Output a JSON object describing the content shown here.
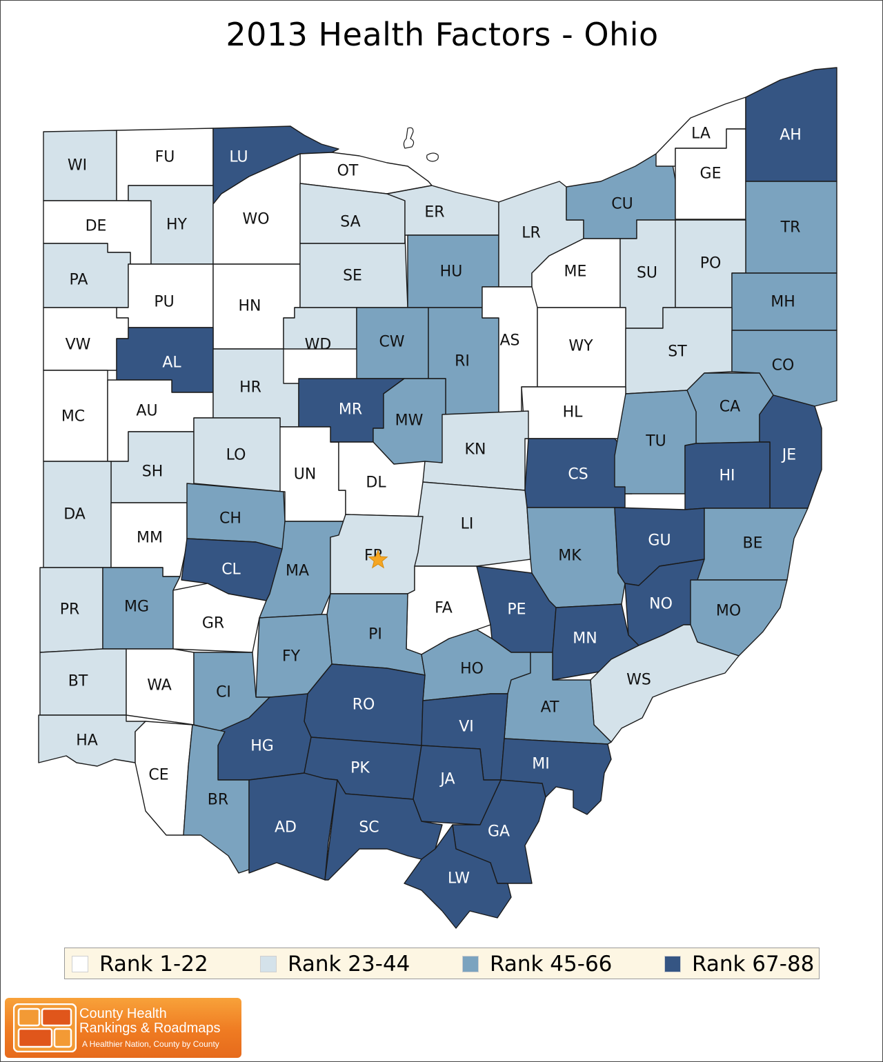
{
  "title": "2013 Health Factors - Ohio",
  "colors": {
    "rank_1_22": "#ffffff",
    "rank_23_44": "#d4e2ea",
    "rank_45_66": "#7ba3bf",
    "rank_67_88": "#355583",
    "outline": "#1a1a1a",
    "star": "#f5a623"
  },
  "legend": [
    {
      "label": "Rank 1-22",
      "tier": 1,
      "color": "#ffffff"
    },
    {
      "label": "Rank 23-44",
      "tier": 2,
      "color": "#d4e2ea"
    },
    {
      "label": "Rank 45-66",
      "tier": 3,
      "color": "#7ba3bf"
    },
    {
      "label": "Rank 67-88",
      "tier": 4,
      "color": "#355583"
    }
  ],
  "counties": [
    {
      "abbr": "WI",
      "tier": 2
    },
    {
      "abbr": "FU",
      "tier": 1
    },
    {
      "abbr": "LU",
      "tier": 4
    },
    {
      "abbr": "OT",
      "tier": 1
    },
    {
      "abbr": "DE",
      "tier": 1
    },
    {
      "abbr": "HY",
      "tier": 2
    },
    {
      "abbr": "WO",
      "tier": 1
    },
    {
      "abbr": "SA",
      "tier": 2
    },
    {
      "abbr": "ER",
      "tier": 2
    },
    {
      "abbr": "PA",
      "tier": 2
    },
    {
      "abbr": "PU",
      "tier": 1
    },
    {
      "abbr": "HN",
      "tier": 1
    },
    {
      "abbr": "SE",
      "tier": 2
    },
    {
      "abbr": "HU",
      "tier": 3
    },
    {
      "abbr": "LR",
      "tier": 2
    },
    {
      "abbr": "CU",
      "tier": 3
    },
    {
      "abbr": "LA",
      "tier": 1
    },
    {
      "abbr": "GE",
      "tier": 1
    },
    {
      "abbr": "AH",
      "tier": 4
    },
    {
      "abbr": "TR",
      "tier": 3
    },
    {
      "abbr": "ME",
      "tier": 1
    },
    {
      "abbr": "SU",
      "tier": 2
    },
    {
      "abbr": "PO",
      "tier": 2
    },
    {
      "abbr": "MH",
      "tier": 3
    },
    {
      "abbr": "VW",
      "tier": 1
    },
    {
      "abbr": "AL",
      "tier": 4
    },
    {
      "abbr": "WD",
      "tier": 2
    },
    {
      "abbr": "CW",
      "tier": 3
    },
    {
      "abbr": "RI",
      "tier": 3
    },
    {
      "abbr": "AS",
      "tier": 1
    },
    {
      "abbr": "WY",
      "tier": 1
    },
    {
      "abbr": "ST",
      "tier": 2
    },
    {
      "abbr": "CO",
      "tier": 3
    },
    {
      "abbr": "MC",
      "tier": 1
    },
    {
      "abbr": "AU",
      "tier": 1
    },
    {
      "abbr": "HR",
      "tier": 2
    },
    {
      "abbr": "MR",
      "tier": 4
    },
    {
      "abbr": "MW",
      "tier": 3
    },
    {
      "abbr": "HL",
      "tier": 1
    },
    {
      "abbr": "CA",
      "tier": 3
    },
    {
      "abbr": "JE",
      "tier": 4
    },
    {
      "abbr": "SH",
      "tier": 2
    },
    {
      "abbr": "LO",
      "tier": 2
    },
    {
      "abbr": "UN",
      "tier": 1
    },
    {
      "abbr": "DL",
      "tier": 1
    },
    {
      "abbr": "KN",
      "tier": 2
    },
    {
      "abbr": "CS",
      "tier": 4
    },
    {
      "abbr": "TU",
      "tier": 3
    },
    {
      "abbr": "HI",
      "tier": 4
    },
    {
      "abbr": "DA",
      "tier": 2
    },
    {
      "abbr": "MM",
      "tier": 1
    },
    {
      "abbr": "CH",
      "tier": 3
    },
    {
      "abbr": "LI",
      "tier": 2
    },
    {
      "abbr": "CL",
      "tier": 4
    },
    {
      "abbr": "MA",
      "tier": 3
    },
    {
      "abbr": "FR",
      "tier": 2
    },
    {
      "abbr": "MK",
      "tier": 3
    },
    {
      "abbr": "GU",
      "tier": 4
    },
    {
      "abbr": "BE",
      "tier": 3
    },
    {
      "abbr": "PR",
      "tier": 2
    },
    {
      "abbr": "MG",
      "tier": 3
    },
    {
      "abbr": "GR",
      "tier": 1
    },
    {
      "abbr": "FA",
      "tier": 1
    },
    {
      "abbr": "PE",
      "tier": 4
    },
    {
      "abbr": "NO",
      "tier": 4
    },
    {
      "abbr": "MO",
      "tier": 3
    },
    {
      "abbr": "PI",
      "tier": 3
    },
    {
      "abbr": "FY",
      "tier": 3
    },
    {
      "abbr": "MN",
      "tier": 4
    },
    {
      "abbr": "BT",
      "tier": 2
    },
    {
      "abbr": "WA",
      "tier": 1
    },
    {
      "abbr": "CI",
      "tier": 3
    },
    {
      "abbr": "HO",
      "tier": 3
    },
    {
      "abbr": "WS",
      "tier": 2
    },
    {
      "abbr": "RO",
      "tier": 4
    },
    {
      "abbr": "AT",
      "tier": 3
    },
    {
      "abbr": "VI",
      "tier": 4
    },
    {
      "abbr": "HA",
      "tier": 2
    },
    {
      "abbr": "HG",
      "tier": 4
    },
    {
      "abbr": "MI",
      "tier": 4
    },
    {
      "abbr": "PK",
      "tier": 4
    },
    {
      "abbr": "JA",
      "tier": 4
    },
    {
      "abbr": "CE",
      "tier": 1
    },
    {
      "abbr": "BR",
      "tier": 3
    },
    {
      "abbr": "AD",
      "tier": 4
    },
    {
      "abbr": "SC",
      "tier": 4
    },
    {
      "abbr": "GA",
      "tier": 4
    },
    {
      "abbr": "LW",
      "tier": 4
    }
  ],
  "capital_marker": {
    "county": "FR",
    "icon": "star-icon"
  },
  "logo": {
    "line1": "County Health",
    "line2": "Rankings & Roadmaps",
    "tagline": "A Healthier Nation, County by County"
  }
}
